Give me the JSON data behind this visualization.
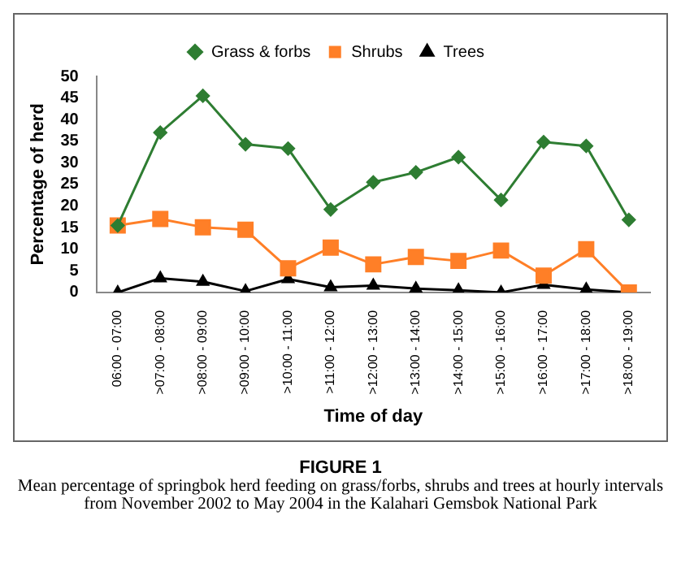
{
  "chart_data": {
    "type": "line",
    "title": "FIGURE 1",
    "subtitle": "Mean percentage of springbok herd feeding on grass/forbs, shrubs and trees at hourly intervals from November 2002 to May 2004 in the Kalahari Gemsbok National Park",
    "xlabel": "Time of day",
    "ylabel": "Percentage of herd",
    "categories": [
      "06:00 - 07:00",
      ">07:00 - 08:00",
      ">08:00 - 09:00",
      ">09:00 - 10:00",
      ">10:00 - 11:00",
      ">11:00 - 12:00",
      ">12:00 - 13:00",
      ">13:00 - 14:00",
      ">14:00 - 15:00",
      ">15:00 - 16:00",
      ">16:00 - 17:00",
      ">17:00 - 18:00",
      ">18:00 - 19:00"
    ],
    "series": [
      {
        "name": "Grass & forbs",
        "color": "#2e7d32",
        "marker": "diamond",
        "values": [
          15.5,
          37,
          45.5,
          34.3,
          33.3,
          19.2,
          25.5,
          27.8,
          31.3,
          21.4,
          34.8,
          33.9,
          16.8
        ]
      },
      {
        "name": "Shrubs",
        "color": "#ff7f27",
        "marker": "square",
        "values": [
          15.5,
          17,
          15.1,
          14.5,
          5.6,
          10.4,
          6.5,
          8.2,
          7.3,
          9.7,
          3.9,
          10,
          0
        ]
      },
      {
        "name": "Trees",
        "color": "#000000",
        "marker": "triangle",
        "values": [
          0,
          3.3,
          2.5,
          0.3,
          3.1,
          1.2,
          1.6,
          0.9,
          0.5,
          0,
          1.8,
          0.7,
          0
        ]
      }
    ],
    "ylim": [
      0,
      50
    ],
    "yticks": [
      0,
      5,
      10,
      15,
      20,
      25,
      30,
      35,
      40,
      45,
      50
    ],
    "grid": false,
    "legend": "top",
    "line_style": "solid"
  }
}
